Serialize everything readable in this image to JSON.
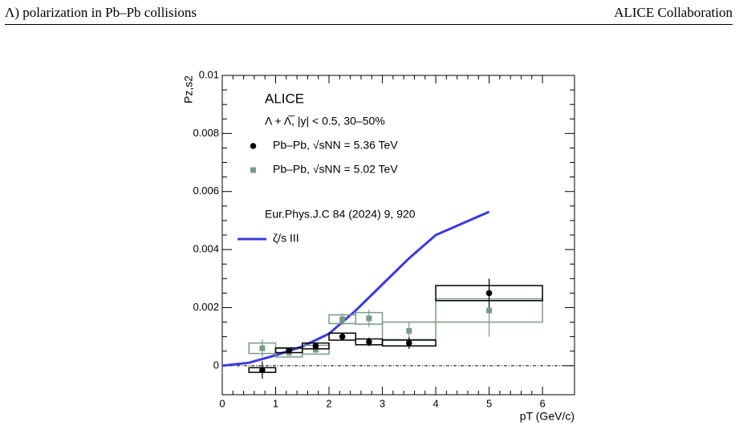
{
  "header": {
    "left": "Λ) polarization in Pb–Pb collisions",
    "right": "ALICE Collaboration"
  },
  "chart_data": {
    "type": "errorbar",
    "title": "ALICE",
    "subtitle": "Λ + Λ̅, |y| < 0.5, 30–50%",
    "annotation": "Eur.Phys.J.C 84 (2024) 9, 920",
    "x_label": "pT (GeV/c)",
    "y_label": "Pz,s2",
    "xlim": [
      0,
      6.6
    ],
    "ylim": [
      -0.001,
      0.01
    ],
    "xticks": [
      0,
      1,
      2,
      3,
      4,
      5,
      6
    ],
    "yticks": [
      0,
      0.002,
      0.004,
      0.006,
      0.008,
      0.01
    ],
    "x": [
      0.75,
      1.25,
      1.75,
      2.25,
      2.75,
      3.5,
      5
    ],
    "xerr": [
      0.25,
      0.25,
      0.25,
      0.25,
      0.25,
      0.5,
      1
    ],
    "series": [
      {
        "name": "Pb–Pb,  √sNN = 5.36 TeV",
        "color": "#000000",
        "marker": "circle",
        "values": [
          -0.00015,
          0.00053,
          0.00068,
          0.001,
          0.00082,
          0.00078,
          0.0025
        ],
        "errors": [
          0.0003,
          0.0001,
          0.0001,
          0.0001,
          0.00015,
          0.0002,
          0.0005
        ],
        "sys_errors": [
          8e-05,
          8e-05,
          0.0001,
          0.00012,
          0.0001,
          0.0001,
          0.00026
        ]
      },
      {
        "name": "Pb–Pb,  √sNN = 5.02 TeV",
        "color": "#7a9a86",
        "marker": "square",
        "values": [
          0.0006,
          0.00045,
          0.00055,
          0.0016,
          0.00163,
          0.0012,
          0.0019
        ],
        "errors": [
          0.0003,
          0.0001,
          0.0001,
          0.0002,
          0.0003,
          0.0003,
          0.0009
        ],
        "sys_errors": [
          0.00018,
          0.00015,
          0.00015,
          0.00015,
          0.0002,
          0.0003,
          0.0004
        ]
      }
    ],
    "curve": {
      "name": "ζ/s III",
      "color": "#3a3adf",
      "x": [
        0,
        0.5,
        1,
        1.5,
        2,
        2.5,
        3,
        3.5,
        4,
        4.5,
        5
      ],
      "values": [
        0,
        0.0001,
        0.00036,
        0.00066,
        0.0011,
        0.0019,
        0.0028,
        0.0037,
        0.0045,
        0.0049,
        0.0053
      ]
    }
  }
}
